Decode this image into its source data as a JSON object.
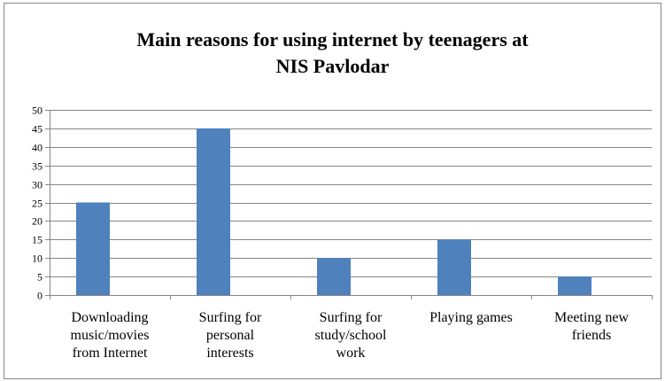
{
  "chart_data": {
    "type": "bar",
    "title_lines": [
      "Main reasons for using internet by teenagers at",
      "NIS Pavlodar"
    ],
    "categories": [
      [
        "Downloading",
        "music/movies",
        "from Internet"
      ],
      [
        "Surfing for",
        "personal",
        "interests"
      ],
      [
        "Surfing for",
        "study/school",
        "work"
      ],
      [
        "Playing games"
      ],
      [
        "Meeting new",
        "friends"
      ]
    ],
    "values": [
      25,
      45,
      10,
      15,
      5
    ],
    "ylim": [
      0,
      50
    ],
    "ytick_step": 5,
    "grid": true,
    "bar_color": "#4F81BD",
    "grid_color": "#868686"
  }
}
